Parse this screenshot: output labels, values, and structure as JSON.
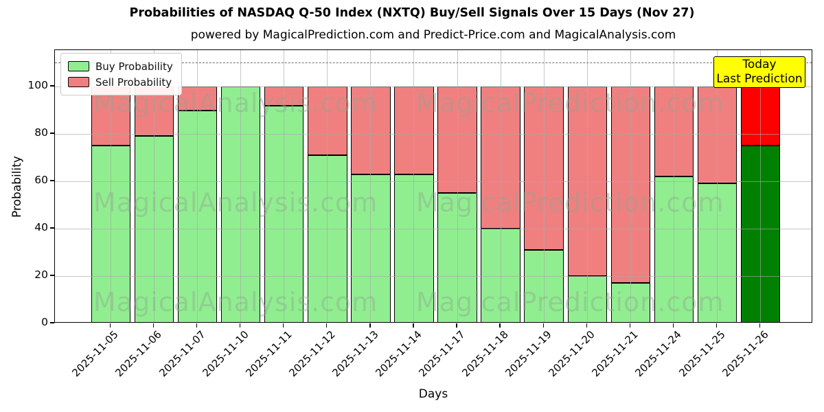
{
  "title": "Probabilities of NASDAQ Q-50 Index (NXTQ) Buy/Sell Signals Over 15 Days (Nov 27)",
  "subtitle": "powered by MagicalPrediction.com and Predict-Price.com and MagicalAnalysis.com",
  "legend": {
    "buy_label": "Buy Probability",
    "sell_label": "Sell Probability"
  },
  "annotation_box": {
    "line1": "Today",
    "line2": "Last Prediction"
  },
  "watermarks": [
    "MagicalAnalysis.com",
    "MagicalPrediction.com"
  ],
  "colors": {
    "buy": "#90EE90",
    "sell": "#F08080",
    "today_buy": "#008000",
    "today_sell": "#FF0000",
    "annotation_bg": "#FFFF00",
    "grid": "#a8a8a8",
    "dashed_line": "#6e6e6e",
    "watermark": "#91a591"
  },
  "chart_data": {
    "type": "bar",
    "stacked": true,
    "title": "Probabilities of NASDAQ Q-50 Index (NXTQ) Buy/Sell Signals Over 15 Days (Nov 27)",
    "xlabel": "Days",
    "ylabel": "Probability",
    "categories": [
      "2025-11-05",
      "2025-11-06",
      "2025-11-07",
      "2025-11-10",
      "2025-11-11",
      "2025-11-12",
      "2025-11-13",
      "2025-11-14",
      "2025-11-17",
      "2025-11-18",
      "2025-11-19",
      "2025-11-20",
      "2025-11-21",
      "2025-11-24",
      "2025-11-25",
      "2025-11-26"
    ],
    "series": [
      {
        "name": "Buy Probability",
        "values": [
          75,
          79,
          90,
          100,
          92,
          71,
          63,
          63,
          55,
          40,
          31,
          20,
          17,
          62,
          59,
          75
        ]
      },
      {
        "name": "Sell Probability",
        "values": [
          25,
          21,
          10,
          0,
          8,
          29,
          37,
          37,
          45,
          60,
          69,
          80,
          83,
          38,
          41,
          25
        ]
      }
    ],
    "today_index": 15,
    "yticks": [
      "0",
      "20",
      "40",
      "60",
      "80",
      "100"
    ],
    "ylim": [
      0,
      115.4
    ],
    "dashed_line_y": 110,
    "grid": true,
    "legend_position": "upper left"
  }
}
